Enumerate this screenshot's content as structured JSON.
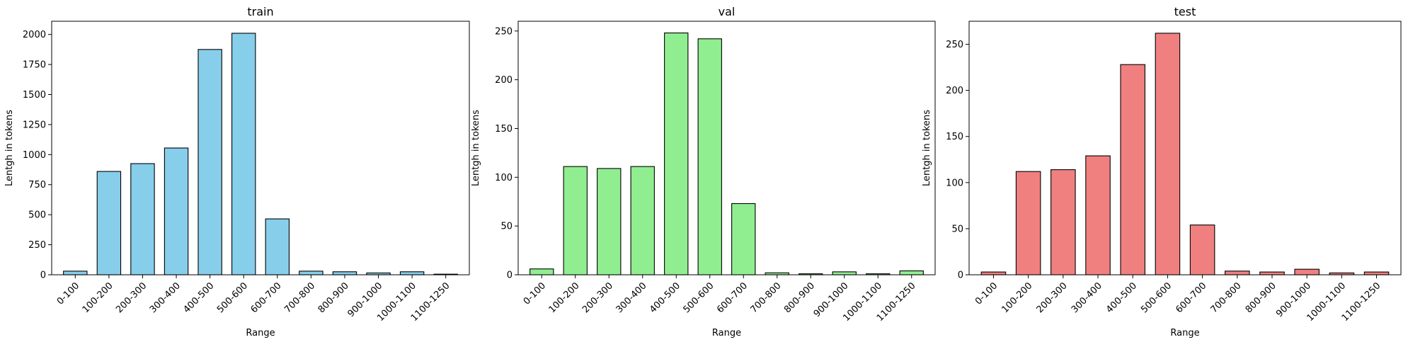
{
  "chart_data": [
    {
      "type": "bar",
      "title": "train",
      "xlabel": "Range",
      "ylabel": "Lentgh in tokens",
      "categories": [
        "0-100",
        "100-200",
        "200-300",
        "300-400",
        "400-500",
        "500-600",
        "600-700",
        "700-800",
        "800-900",
        "900-1000",
        "1000-1100",
        "1100-1250"
      ],
      "values": [
        30,
        860,
        925,
        1055,
        1875,
        2010,
        465,
        30,
        25,
        15,
        25,
        5
      ],
      "ylim": [
        0,
        2110
      ],
      "yticks": [
        0,
        250,
        500,
        750,
        1000,
        1250,
        1500,
        1750,
        2000
      ],
      "color": "#87ceeb"
    },
    {
      "type": "bar",
      "title": "val",
      "xlabel": "Range",
      "ylabel": "Lentgh in tokens",
      "categories": [
        "0-100",
        "100-200",
        "200-300",
        "300-400",
        "400-500",
        "500-600",
        "600-700",
        "700-800",
        "800-900",
        "900-1000",
        "1000-1100",
        "1100-1250"
      ],
      "values": [
        6,
        111,
        109,
        111,
        248,
        242,
        73,
        2,
        1,
        3,
        1,
        4
      ],
      "ylim": [
        0,
        260
      ],
      "yticks": [
        0,
        50,
        100,
        150,
        200,
        250
      ],
      "color": "#90ee90"
    },
    {
      "type": "bar",
      "title": "test",
      "xlabel": "Range",
      "ylabel": "Lentgh in tokens",
      "categories": [
        "0-100",
        "100-200",
        "200-300",
        "300-400",
        "400-500",
        "500-600",
        "600-700",
        "700-800",
        "800-900",
        "900-1000",
        "1000-1100",
        "1100-1250"
      ],
      "values": [
        3,
        112,
        114,
        129,
        228,
        262,
        54,
        4,
        3,
        6,
        2,
        3
      ],
      "ylim": [
        0,
        275
      ],
      "yticks": [
        0,
        50,
        100,
        150,
        200,
        250
      ],
      "color": "#f08080"
    }
  ]
}
